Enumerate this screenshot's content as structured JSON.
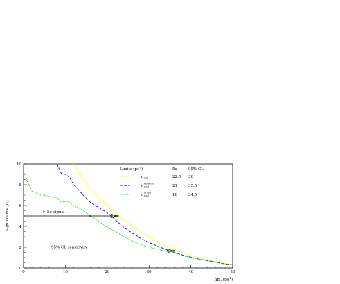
{
  "chart_data": {
    "type": "line",
    "xlabel": "Δm",
    "xlabel_sub": "s",
    "xlabel_unit": "(ps",
    "xlabel_unit_sup": "-1",
    "xlabel_unit_close": ")",
    "ylabel": "Significance (σ)",
    "xlim": [
      0,
      50
    ],
    "ylim": [
      0,
      10
    ],
    "x_ticks": [
      "0",
      "10",
      "20",
      "30",
      "40",
      "50"
    ],
    "y_ticks": [
      "0",
      "2",
      "4",
      "6",
      "8",
      "10"
    ],
    "grid": false,
    "legend": {
      "placement": "top-right",
      "header": [
        "Limits (ps",
        "-1",
        ")",
        "5σ",
        "95% CL"
      ],
      "rows": [
        {
          "sym": "σ",
          "sub": "stat",
          "sup": "",
          "v5": "22.5",
          "v95": "36",
          "color": "#ffff00",
          "dash": "solid"
        },
        {
          "sym": "σ",
          "sub": "total",
          "sup": "expected",
          "v5": "21",
          "v95": "35.5",
          "color": "#0000ff",
          "dash": "dashed"
        },
        {
          "sym": "σ",
          "sub": "total",
          "sup": "actual",
          "v5": "16",
          "v95": "34.5",
          "color": "#00dd00",
          "dash": "dotted"
        }
      ]
    },
    "series": [
      {
        "color": "#ffff00",
        "style": "solid",
        "x": [
          12,
          14,
          16,
          18,
          20,
          22,
          24,
          26,
          28,
          30,
          32,
          34,
          36,
          38,
          40,
          42,
          44,
          46,
          48,
          50
        ],
        "y": [
          10,
          8.7,
          7.7,
          6.8,
          6.0,
          5.3,
          4.6,
          4.05,
          3.5,
          3.0,
          2.55,
          2.15,
          1.8,
          1.45,
          1.2,
          1.0,
          0.8,
          0.6,
          0.45,
          0.3
        ]
      },
      {
        "color": "#0000ff",
        "style": "dashed",
        "x": [
          8,
          9,
          10,
          11,
          12,
          13,
          14,
          16,
          18,
          20,
          21,
          22,
          24,
          26,
          28,
          30,
          32,
          34,
          36,
          38,
          40,
          42,
          44,
          46,
          48,
          50
        ],
        "y": [
          10,
          9.1,
          9.0,
          8.7,
          8.0,
          7.6,
          7.1,
          6.3,
          5.8,
          5.3,
          5.0,
          4.6,
          3.9,
          3.35,
          2.85,
          2.45,
          2.1,
          1.8,
          1.5,
          1.25,
          1.05,
          0.85,
          0.7,
          0.55,
          0.4,
          0.3
        ]
      },
      {
        "color": "#00dd00",
        "style": "dotted",
        "x": [
          0,
          1,
          2,
          3,
          4,
          5,
          6,
          7,
          8,
          9,
          10,
          11,
          12,
          14,
          16,
          18,
          20,
          22,
          24,
          26,
          28,
          30,
          32,
          34,
          36,
          38,
          40,
          42,
          44,
          46,
          48,
          50
        ],
        "y": [
          9.3,
          8.2,
          7.4,
          7.2,
          7.0,
          7.0,
          6.9,
          6.8,
          6.8,
          6.3,
          6.4,
          6.3,
          6.0,
          5.6,
          5.0,
          4.5,
          3.9,
          3.5,
          3.0,
          2.6,
          2.25,
          2.0,
          1.8,
          1.6,
          1.5,
          1.2,
          1.0,
          0.85,
          0.7,
          0.55,
          0.4,
          0.3
        ]
      }
    ],
    "annotations": [
      {
        "text": "> 5σ signal",
        "y": 5,
        "x_end": 22.5
      },
      {
        "text": "95% CL sensitivity",
        "y": 1.645,
        "x_end": 36
      }
    ],
    "markers": [
      16,
      21,
      22.5,
      34.5,
      35.5,
      36
    ]
  }
}
